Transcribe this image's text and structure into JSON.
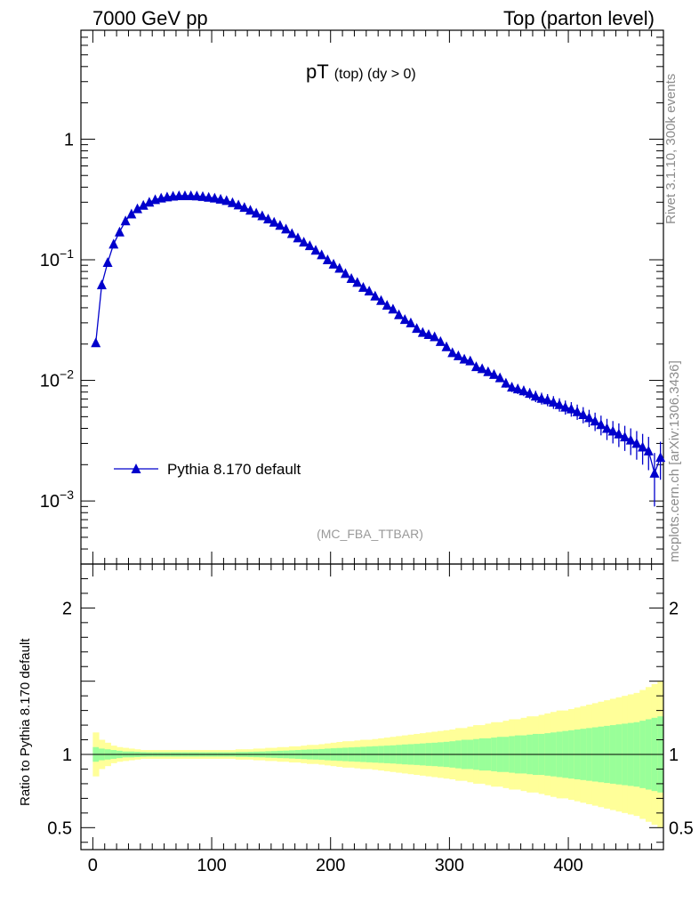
{
  "header": {
    "left": "7000 GeV pp",
    "right": "Top (parton level)"
  },
  "side_labels": {
    "rivet": "Rivet 3.1.10,  300k events",
    "mcplots": "mcplots.cern.ch [arXiv:1306.3436]"
  },
  "chart_data": [
    {
      "type": "line",
      "title_main": "pT",
      "title_sub": "(top) (dy > 0)",
      "analysis": "(MC_FBA_TTBAR)",
      "ylog": true,
      "ylim": [
        0.0003,
        8
      ],
      "xlim": [
        -10,
        480
      ],
      "yticks": [
        {
          "v": 1,
          "base": "1",
          "exp": ""
        },
        {
          "v": 0.1,
          "base": "10",
          "exp": "−1"
        },
        {
          "v": 0.01,
          "base": "10",
          "exp": "−2"
        },
        {
          "v": 0.001,
          "base": "10",
          "exp": "−3"
        }
      ],
      "series": [
        {
          "name": "Pythia 8.170 default",
          "color": "#0000cc",
          "marker": "triangle-up",
          "x": [
            2.5,
            7.5,
            12.5,
            17.5,
            22.5,
            27.5,
            32.5,
            37.5,
            42.5,
            47.5,
            52.5,
            57.5,
            62.5,
            67.5,
            72.5,
            77.5,
            82.5,
            87.5,
            92.5,
            97.5,
            102.5,
            107.5,
            112.5,
            117.5,
            122.5,
            127.5,
            132.5,
            137.5,
            142.5,
            147.5,
            152.5,
            157.5,
            162.5,
            167.5,
            172.5,
            177.5,
            182.5,
            187.5,
            192.5,
            197.5,
            202.5,
            207.5,
            212.5,
            217.5,
            222.5,
            227.5,
            232.5,
            237.5,
            242.5,
            247.5,
            252.5,
            257.5,
            262.5,
            267.5,
            272.5,
            277.5,
            282.5,
            287.5,
            292.5,
            297.5,
            302.5,
            307.5,
            312.5,
            317.5,
            322.5,
            327.5,
            332.5,
            337.5,
            342.5,
            347.5,
            352.5,
            357.5,
            362.5,
            367.5,
            372.5,
            377.5,
            382.5,
            387.5,
            392.5,
            397.5,
            402.5,
            407.5,
            412.5,
            417.5,
            422.5,
            427.5,
            432.5,
            437.5,
            442.5,
            447.5,
            452.5,
            457.5,
            462.5,
            467.5,
            472.5,
            477.5
          ],
          "y": [
            0.0205,
            0.062,
            0.095,
            0.135,
            0.17,
            0.21,
            0.24,
            0.265,
            0.283,
            0.3,
            0.315,
            0.325,
            0.332,
            0.337,
            0.34,
            0.34,
            0.34,
            0.338,
            0.335,
            0.33,
            0.325,
            0.318,
            0.31,
            0.298,
            0.285,
            0.272,
            0.258,
            0.244,
            0.232,
            0.218,
            0.205,
            0.193,
            0.18,
            0.165,
            0.152,
            0.14,
            0.131,
            0.12,
            0.11,
            0.1,
            0.092,
            0.085,
            0.077,
            0.07,
            0.065,
            0.059,
            0.055,
            0.05,
            0.046,
            0.042,
            0.039,
            0.035,
            0.032,
            0.03,
            0.027,
            0.025,
            0.024,
            0.023,
            0.021,
            0.019,
            0.017,
            0.016,
            0.015,
            0.0145,
            0.013,
            0.0125,
            0.0118,
            0.0112,
            0.0105,
            0.0095,
            0.0088,
            0.0085,
            0.0082,
            0.0078,
            0.0074,
            0.0071,
            0.0069,
            0.0066,
            0.0063,
            0.006,
            0.0058,
            0.0055,
            0.0052,
            0.0049,
            0.0046,
            0.0043,
            0.004,
            0.0038,
            0.0036,
            0.0034,
            0.0032,
            0.003,
            0.0028,
            0.0026,
            0.0017,
            0.0023
          ],
          "err": [
            0,
            0,
            0,
            0,
            0,
            0,
            0,
            0,
            0,
            0,
            0,
            0,
            0,
            0,
            0,
            0,
            0,
            0,
            0,
            0,
            0,
            0,
            0,
            0,
            0,
            0,
            0,
            0,
            0,
            0,
            0,
            0,
            0,
            0,
            0,
            0,
            0,
            0,
            0,
            0,
            0,
            0,
            0,
            0,
            0,
            0,
            0,
            0,
            0,
            0,
            0,
            0,
            0,
            0,
            0,
            0,
            0,
            0,
            0,
            0,
            0,
            0,
            0,
            0,
            0,
            0,
            0,
            0,
            0,
            0.0008,
            0.0008,
            0.0008,
            0.0008,
            0.0008,
            0.0008,
            0.0008,
            0.0008,
            0.0008,
            0.0008,
            0.0008,
            0.0008,
            0.0008,
            0.0008,
            0.0008,
            0.0008,
            0.0008,
            0.0008,
            0.0008,
            0.0008,
            0.0008,
            0.0008,
            0.0008,
            0.0008,
            0.0008,
            0.0008,
            0.0008
          ]
        }
      ]
    },
    {
      "type": "area",
      "ylabel": "Ratio to Pythia 8.170 default",
      "ylim": [
        0.35,
        2.3
      ],
      "xlim": [
        -10,
        480
      ],
      "xticks": [
        0,
        100,
        200,
        300,
        400
      ],
      "yticks": [
        0.5,
        1,
        2
      ],
      "reference": 1,
      "bins": [
        0,
        5,
        10,
        15,
        20,
        25,
        30,
        35,
        40,
        45,
        50,
        55,
        60,
        65,
        70,
        75,
        80,
        85,
        90,
        95,
        100,
        105,
        110,
        115,
        120,
        125,
        130,
        135,
        140,
        145,
        150,
        155,
        160,
        165,
        170,
        175,
        180,
        185,
        190,
        195,
        200,
        205,
        210,
        215,
        220,
        225,
        230,
        235,
        240,
        245,
        250,
        255,
        260,
        265,
        270,
        275,
        280,
        285,
        290,
        295,
        300,
        305,
        310,
        315,
        320,
        325,
        330,
        335,
        340,
        345,
        350,
        355,
        360,
        365,
        370,
        375,
        380,
        385,
        390,
        395,
        400,
        405,
        410,
        415,
        420,
        425,
        430,
        435,
        440,
        445,
        450,
        455,
        460,
        465,
        470,
        475,
        480
      ],
      "band_yellow_half": [
        0.15,
        0.1,
        0.08,
        0.06,
        0.05,
        0.045,
        0.04,
        0.035,
        0.03,
        0.03,
        0.03,
        0.03,
        0.03,
        0.03,
        0.03,
        0.03,
        0.03,
        0.03,
        0.03,
        0.03,
        0.03,
        0.03,
        0.03,
        0.03,
        0.035,
        0.035,
        0.035,
        0.04,
        0.04,
        0.045,
        0.045,
        0.05,
        0.05,
        0.055,
        0.055,
        0.06,
        0.065,
        0.065,
        0.07,
        0.075,
        0.08,
        0.085,
        0.09,
        0.09,
        0.095,
        0.1,
        0.1,
        0.105,
        0.11,
        0.115,
        0.12,
        0.125,
        0.13,
        0.135,
        0.14,
        0.145,
        0.15,
        0.155,
        0.16,
        0.165,
        0.17,
        0.18,
        0.18,
        0.19,
        0.2,
        0.2,
        0.21,
        0.22,
        0.22,
        0.23,
        0.24,
        0.24,
        0.25,
        0.26,
        0.26,
        0.27,
        0.28,
        0.29,
        0.3,
        0.3,
        0.31,
        0.32,
        0.33,
        0.34,
        0.35,
        0.36,
        0.37,
        0.38,
        0.39,
        0.4,
        0.41,
        0.42,
        0.44,
        0.46,
        0.48,
        0.5
      ],
      "band_green_half": [
        0.05,
        0.04,
        0.035,
        0.03,
        0.025,
        0.02,
        0.02,
        0.018,
        0.016,
        0.015,
        0.015,
        0.015,
        0.015,
        0.015,
        0.015,
        0.015,
        0.015,
        0.015,
        0.015,
        0.015,
        0.015,
        0.015,
        0.015,
        0.015,
        0.017,
        0.017,
        0.018,
        0.019,
        0.02,
        0.022,
        0.023,
        0.025,
        0.026,
        0.028,
        0.03,
        0.032,
        0.034,
        0.035,
        0.037,
        0.04,
        0.042,
        0.044,
        0.046,
        0.048,
        0.05,
        0.052,
        0.054,
        0.056,
        0.058,
        0.06,
        0.062,
        0.065,
        0.068,
        0.07,
        0.072,
        0.075,
        0.078,
        0.08,
        0.083,
        0.086,
        0.09,
        0.095,
        0.1,
        0.1,
        0.105,
        0.11,
        0.11,
        0.115,
        0.12,
        0.12,
        0.125,
        0.13,
        0.13,
        0.135,
        0.14,
        0.14,
        0.145,
        0.15,
        0.155,
        0.16,
        0.165,
        0.17,
        0.175,
        0.18,
        0.185,
        0.19,
        0.195,
        0.2,
        0.205,
        0.21,
        0.215,
        0.22,
        0.23,
        0.24,
        0.25,
        0.26
      ],
      "colors": {
        "yellow": "#ffff99",
        "green": "#99ff99"
      }
    }
  ]
}
